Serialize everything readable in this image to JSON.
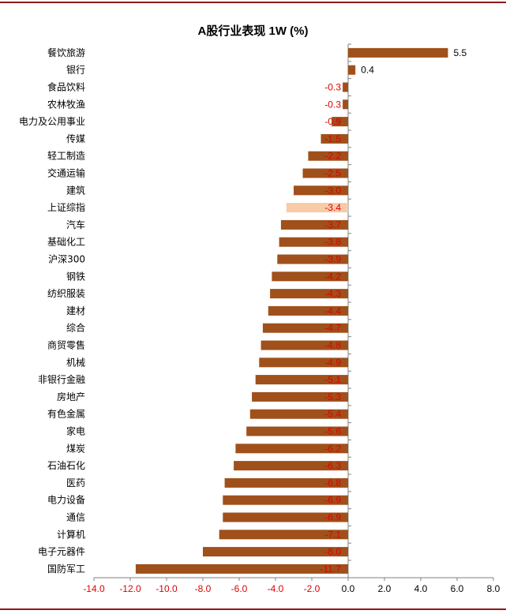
{
  "chart_data": {
    "type": "bar",
    "orientation": "horizontal",
    "title": "A股行业表现 1W (%)",
    "xlabel": "",
    "ylabel": "",
    "xlim": [
      -14.0,
      8.0
    ],
    "xticks": [
      "-14.0",
      "-12.0",
      "-10.0",
      "-8.0",
      "-6.0",
      "-4.0",
      "-2.0",
      "0.0",
      "2.0",
      "4.0",
      "6.0",
      "8.0"
    ],
    "xtick_values": [
      -14,
      -12,
      -10,
      -8,
      -6,
      -4,
      -2,
      0,
      2,
      4,
      6,
      8
    ],
    "grid": false,
    "categories": [
      "餐饮旅游",
      "银行",
      "食品饮料",
      "农林牧渔",
      "电力及公用事业",
      "传媒",
      "轻工制造",
      "交通运输",
      "建筑",
      "上证综指",
      "汽车",
      "基础化工",
      "沪深300",
      "钢铁",
      "纺织服装",
      "建材",
      "综合",
      "商贸零售",
      "机械",
      "非银行金融",
      "房地产",
      "有色金属",
      "家电",
      "煤炭",
      "石油石化",
      "医药",
      "电力设备",
      "通信",
      "计算机",
      "电子元器件",
      "国防军工"
    ],
    "values": [
      5.5,
      0.4,
      -0.3,
      -0.3,
      -0.9,
      -1.5,
      -2.2,
      -2.5,
      -3.0,
      -3.4,
      -3.7,
      -3.8,
      -3.9,
      -4.2,
      -4.3,
      -4.4,
      -4.7,
      -4.8,
      -4.9,
      -5.1,
      -5.3,
      -5.4,
      -5.6,
      -6.2,
      -6.3,
      -6.8,
      -6.9,
      -6.9,
      -7.1,
      -8.0,
      -11.7
    ],
    "value_labels": [
      "5.5",
      "0.4",
      "-0.3",
      "-0.3",
      "-0.9",
      "-1.5",
      "-2.2",
      "-2.5",
      "-3.0",
      "-3.4",
      "-3.7",
      "-3.8",
      "-3.9",
      "-4.2",
      "-4.3",
      "-4.4",
      "-4.7",
      "-4.8",
      "-4.9",
      "-5.1",
      "-5.3",
      "-5.4",
      "-5.6",
      "-6.2",
      "-6.3",
      "-6.8",
      "-6.9",
      "-6.9",
      "-7.1",
      "-8.0",
      "-11.7"
    ],
    "highlight_index": 9,
    "colors": {
      "bar": "#a0501a",
      "highlight_bar": "#f7cba6",
      "negative_label": "#e00000",
      "positive_label": "#000000",
      "axis": "#808080",
      "tick_label": "#e00000",
      "rule": "#8b1a1a"
    }
  }
}
